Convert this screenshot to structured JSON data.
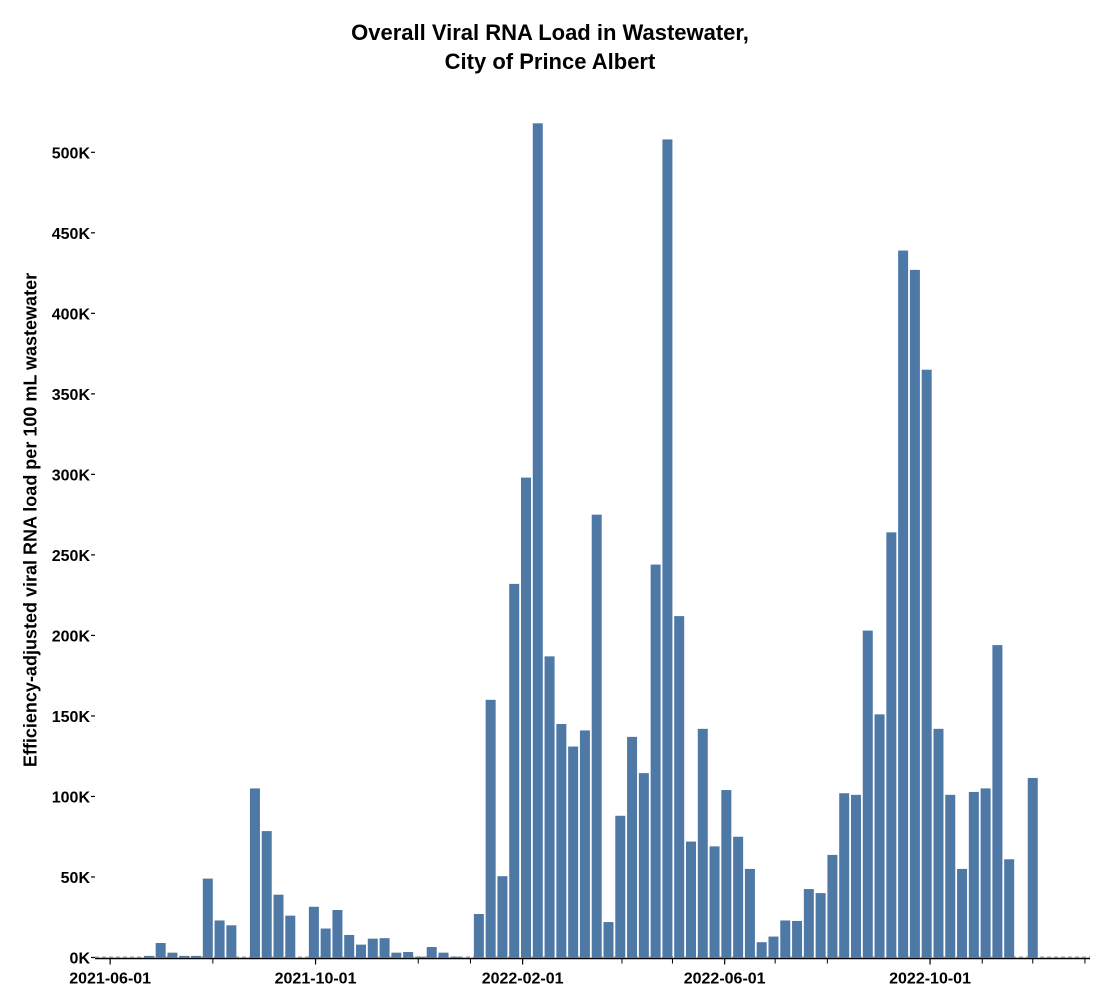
{
  "chart_data": {
    "type": "bar",
    "title": [
      "Overall Viral RNA Load in Wastewater,",
      "City of Prince Albert"
    ],
    "xlabel": "",
    "ylabel": "Efficiency-adjusted viral RNA load per 100 mL wastewater",
    "ylim": [
      0,
      530000
    ],
    "xlim": [
      "2021-05-23",
      "2023-01-04"
    ],
    "grid": false,
    "bar_color": "#4e79a7",
    "y_ticks": [
      {
        "value": 0,
        "label": "0K"
      },
      {
        "value": 50000,
        "label": "50K"
      },
      {
        "value": 100000,
        "label": "100K"
      },
      {
        "value": 150000,
        "label": "150K"
      },
      {
        "value": 200000,
        "label": "200K"
      },
      {
        "value": 250000,
        "label": "250K"
      },
      {
        "value": 300000,
        "label": "300K"
      },
      {
        "value": 350000,
        "label": "350K"
      },
      {
        "value": 400000,
        "label": "400K"
      },
      {
        "value": 450000,
        "label": "450K"
      },
      {
        "value": 500000,
        "label": "500K"
      }
    ],
    "x_ticks": [
      {
        "value": "2021-06-01",
        "label": "2021-06-01"
      },
      {
        "value": "2021-10-01",
        "label": "2021-10-01"
      },
      {
        "value": "2022-02-01",
        "label": "2022-02-01"
      },
      {
        "value": "2022-06-01",
        "label": "2022-06-01"
      },
      {
        "value": "2022-10-01",
        "label": "2022-10-01"
      }
    ],
    "x": [
      "2021-06-24",
      "2021-07-01",
      "2021-07-08",
      "2021-07-15",
      "2021-07-22",
      "2021-07-29",
      "2021-08-05",
      "2021-08-12",
      "2021-08-26",
      "2021-09-02",
      "2021-09-09",
      "2021-09-16",
      "2021-09-30",
      "2021-10-07",
      "2021-10-14",
      "2021-10-21",
      "2021-10-28",
      "2021-11-04",
      "2021-11-11",
      "2021-11-18",
      "2021-11-25",
      "2021-12-02",
      "2021-12-09",
      "2021-12-16",
      "2021-12-23",
      "2022-01-06",
      "2022-01-13",
      "2022-01-20",
      "2022-01-27",
      "2022-02-03",
      "2022-02-10",
      "2022-02-17",
      "2022-02-24",
      "2022-03-03",
      "2022-03-10",
      "2022-03-17",
      "2022-03-24",
      "2022-03-31",
      "2022-04-07",
      "2022-04-14",
      "2022-04-21",
      "2022-04-28",
      "2022-05-05",
      "2022-05-12",
      "2022-05-19",
      "2022-05-26",
      "2022-06-02",
      "2022-06-09",
      "2022-06-16",
      "2022-06-23",
      "2022-06-30",
      "2022-07-07",
      "2022-07-14",
      "2022-07-21",
      "2022-07-28",
      "2022-08-04",
      "2022-08-11",
      "2022-08-18",
      "2022-08-25",
      "2022-09-01",
      "2022-09-08",
      "2022-09-15",
      "2022-09-22",
      "2022-09-29",
      "2022-10-06",
      "2022-10-13",
      "2022-10-20",
      "2022-10-27",
      "2022-11-03",
      "2022-11-10",
      "2022-11-17",
      "2022-12-01"
    ],
    "values": [
      1000,
      9000,
      3000,
      1000,
      1000,
      49000,
      23000,
      20000,
      105000,
      78500,
      39000,
      26000,
      31500,
      18000,
      29500,
      14000,
      8000,
      11700,
      12000,
      3000,
      3400,
      500,
      6500,
      3000,
      500,
      27000,
      160000,
      50500,
      232000,
      298000,
      518000,
      187000,
      145000,
      131000,
      141000,
      275000,
      22000,
      88000,
      137000,
      114500,
      244000,
      508000,
      212000,
      72000,
      142000,
      69000,
      104000,
      75000,
      55000,
      9500,
      13000,
      23000,
      22700,
      42500,
      40000,
      63700,
      102000,
      101000,
      203000,
      151000,
      264000,
      439000,
      427000,
      365000,
      142000,
      101000,
      55000,
      102800,
      105000,
      194000,
      61000,
      111500
    ]
  }
}
